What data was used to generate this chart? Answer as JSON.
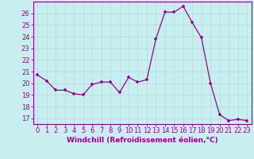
{
  "x": [
    0,
    1,
    2,
    3,
    4,
    5,
    6,
    7,
    8,
    9,
    10,
    11,
    12,
    13,
    14,
    15,
    16,
    17,
    18,
    19,
    20,
    21,
    22,
    23
  ],
  "y": [
    20.7,
    20.2,
    19.4,
    19.4,
    19.1,
    19.0,
    19.9,
    20.1,
    20.1,
    19.2,
    20.5,
    20.1,
    20.3,
    23.8,
    26.1,
    26.1,
    26.6,
    25.2,
    23.9,
    20.0,
    17.3,
    16.8,
    16.9,
    16.8
  ],
  "line_color": "#990099",
  "marker_color": "#990099",
  "bg_color": "#c8eef0",
  "grid_color": "#aadddd",
  "xlabel": "Windchill (Refroidissement éolien,°C)",
  "ylim_min": 16.5,
  "ylim_max": 27.0,
  "xlim_min": -0.5,
  "xlim_max": 23.5,
  "yticks": [
    17,
    18,
    19,
    20,
    21,
    22,
    23,
    24,
    25,
    26
  ],
  "xticks": [
    0,
    1,
    2,
    3,
    4,
    5,
    6,
    7,
    8,
    9,
    10,
    11,
    12,
    13,
    14,
    15,
    16,
    17,
    18,
    19,
    20,
    21,
    22,
    23
  ],
  "title_color": "#990099",
  "axis_color": "#990099",
  "label_fontsize": 6.5,
  "tick_fontsize": 6.0
}
